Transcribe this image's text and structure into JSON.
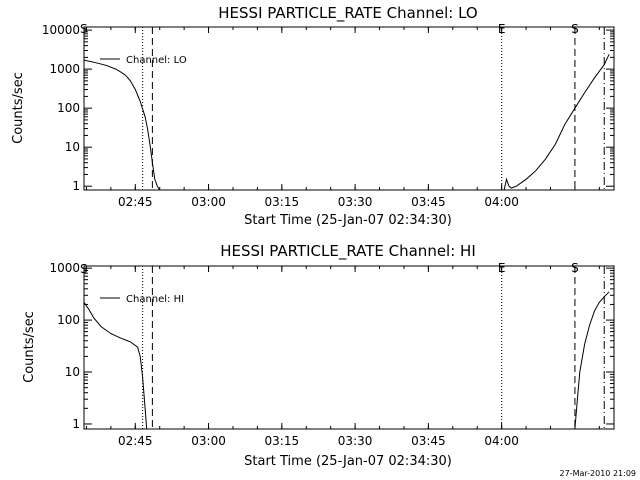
{
  "chart_data": [
    {
      "type": "line",
      "title": "HESSI PARTICLE_RATE Channel: LO",
      "xlabel": "Start Time (25-Jan-07 02:34:30)",
      "ylabel": "Counts/sec",
      "yscale": "log",
      "xlim": [
        "02:34:30",
        "04:23:00"
      ],
      "ylim": [
        0.8,
        12000
      ],
      "x_ticks": [
        "02:45",
        "03:00",
        "03:15",
        "03:30",
        "03:45",
        "04:00"
      ],
      "y_ticks": [
        "1",
        "10",
        "100",
        "1000",
        "10000"
      ],
      "grid": false,
      "legend": "top-left",
      "legend_entries": [
        "Channel: LO"
      ],
      "series": [
        {
          "name": "Channel: LO",
          "x": [
            "02:34:30",
            "02:37:00",
            "02:39:00",
            "02:41:00",
            "02:42:00",
            "02:43:00",
            "02:44:00",
            "02:45:00",
            "02:46:00",
            "02:47:00",
            "02:47:30",
            "02:48:00",
            "02:48:30",
            "02:49:00",
            "02:49:30",
            "02:50:00",
            "04:00:30",
            "04:01:00",
            "04:01:30",
            "04:02:00",
            "04:03:00",
            "04:05:00",
            "04:07:00",
            "04:09:00",
            "04:11:00",
            "04:13:00",
            "04:15:00",
            "04:17:00",
            "04:19:00",
            "04:21:00",
            "04:22:00"
          ],
          "values": [
            1700,
            1450,
            1250,
            1000,
            850,
            700,
            500,
            300,
            150,
            60,
            30,
            12,
            4,
            1.5,
            1.0,
            0.8,
            0.8,
            1.5,
            1.0,
            0.9,
            1.0,
            1.5,
            2.5,
            5,
            12,
            40,
            100,
            250,
            600,
            1300,
            2400
          ]
        }
      ],
      "annotations": [
        {
          "label": "E",
          "x": "04:00:00",
          "style": "dotted"
        },
        {
          "label": "S",
          "x": "04:15:00",
          "style": "dashed"
        }
      ],
      "vertical_lines": [
        {
          "x": "02:46:30",
          "style": "dotted"
        },
        {
          "x": "02:48:30",
          "style": "dashed"
        },
        {
          "x": "04:00:00",
          "style": "dotted"
        },
        {
          "x": "04:15:00",
          "style": "dashed"
        },
        {
          "x": "04:21:00",
          "style": "dash-dot"
        }
      ],
      "corner_label": "S"
    },
    {
      "type": "line",
      "title": "HESSI PARTICLE_RATE Channel: HI",
      "xlabel": "Start Time (25-Jan-07 02:34:30)",
      "ylabel": "Counts/sec",
      "yscale": "log",
      "xlim": [
        "02:34:30",
        "04:23:00"
      ],
      "ylim": [
        0.8,
        1100
      ],
      "x_ticks": [
        "02:45",
        "03:00",
        "03:15",
        "03:30",
        "03:45",
        "04:00"
      ],
      "y_ticks": [
        "1",
        "10",
        "100",
        "1000"
      ],
      "grid": false,
      "legend": "top-left",
      "legend_entries": [
        "Channel: HI"
      ],
      "series": [
        {
          "name": "Channel: HI",
          "x": [
            "02:34:30",
            "02:35:30",
            "02:36:30",
            "02:38:00",
            "02:40:00",
            "02:42:00",
            "02:44:00",
            "02:45:30",
            "02:46:00",
            "02:46:30",
            "02:47:00",
            "02:47:20",
            "04:15:00",
            "04:15:30",
            "04:16:00",
            "04:17:00",
            "04:18:00",
            "04:19:00",
            "04:20:00",
            "04:21:00",
            "04:22:00"
          ],
          "values": [
            220,
            160,
            110,
            75,
            55,
            45,
            38,
            30,
            20,
            8,
            2,
            0.8,
            0.8,
            3,
            10,
            35,
            80,
            150,
            220,
            280,
            350
          ]
        }
      ],
      "annotations": [
        {
          "label": "E",
          "x": "04:00:00",
          "style": "dotted"
        },
        {
          "label": "S",
          "x": "04:15:00",
          "style": "dashed"
        }
      ],
      "vertical_lines": [
        {
          "x": "02:46:30",
          "style": "dotted"
        },
        {
          "x": "02:48:30",
          "style": "dashed"
        },
        {
          "x": "04:00:00",
          "style": "dotted"
        },
        {
          "x": "04:15:00",
          "style": "dashed"
        },
        {
          "x": "04:21:00",
          "style": "dash-dot"
        }
      ],
      "corner_label": "S"
    }
  ],
  "footer": {
    "timestamp": "27-Mar-2010 21:09"
  }
}
